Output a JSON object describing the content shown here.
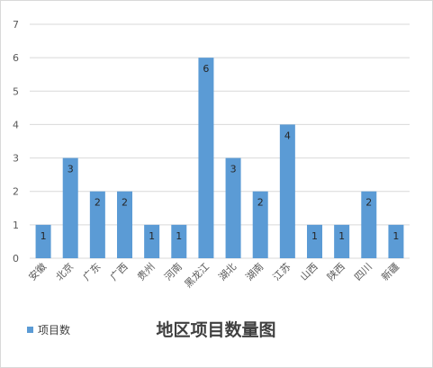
{
  "chart_data": {
    "type": "bar",
    "title": "地区项目数量图",
    "categories": [
      "安徽",
      "北京",
      "广东",
      "广西",
      "贵州",
      "河南",
      "黑龙江",
      "湖北",
      "湖南",
      "江苏",
      "山西",
      "陕西",
      "四川",
      "新疆"
    ],
    "series": [
      {
        "name": "项目数",
        "values": [
          1,
          3,
          2,
          2,
          1,
          1,
          6,
          3,
          2,
          4,
          1,
          1,
          2,
          1
        ]
      }
    ],
    "data_labels": [
      "1",
      "3",
      "2",
      "2",
      "1",
      "1",
      "6",
      "3",
      "2",
      "4",
      "1",
      "1",
      "2",
      "1"
    ],
    "y_ticks": [
      "0",
      "1",
      "2",
      "3",
      "4",
      "5",
      "6",
      "7"
    ],
    "ylim": [
      0,
      7
    ],
    "xlabel": "",
    "ylabel": "",
    "grid": true,
    "legend_position": "bottom-left",
    "colors": {
      "bar": "#5b9bd5",
      "grid": "#d9d9d9",
      "text": "#595959",
      "border": "#d9d9d9"
    }
  }
}
